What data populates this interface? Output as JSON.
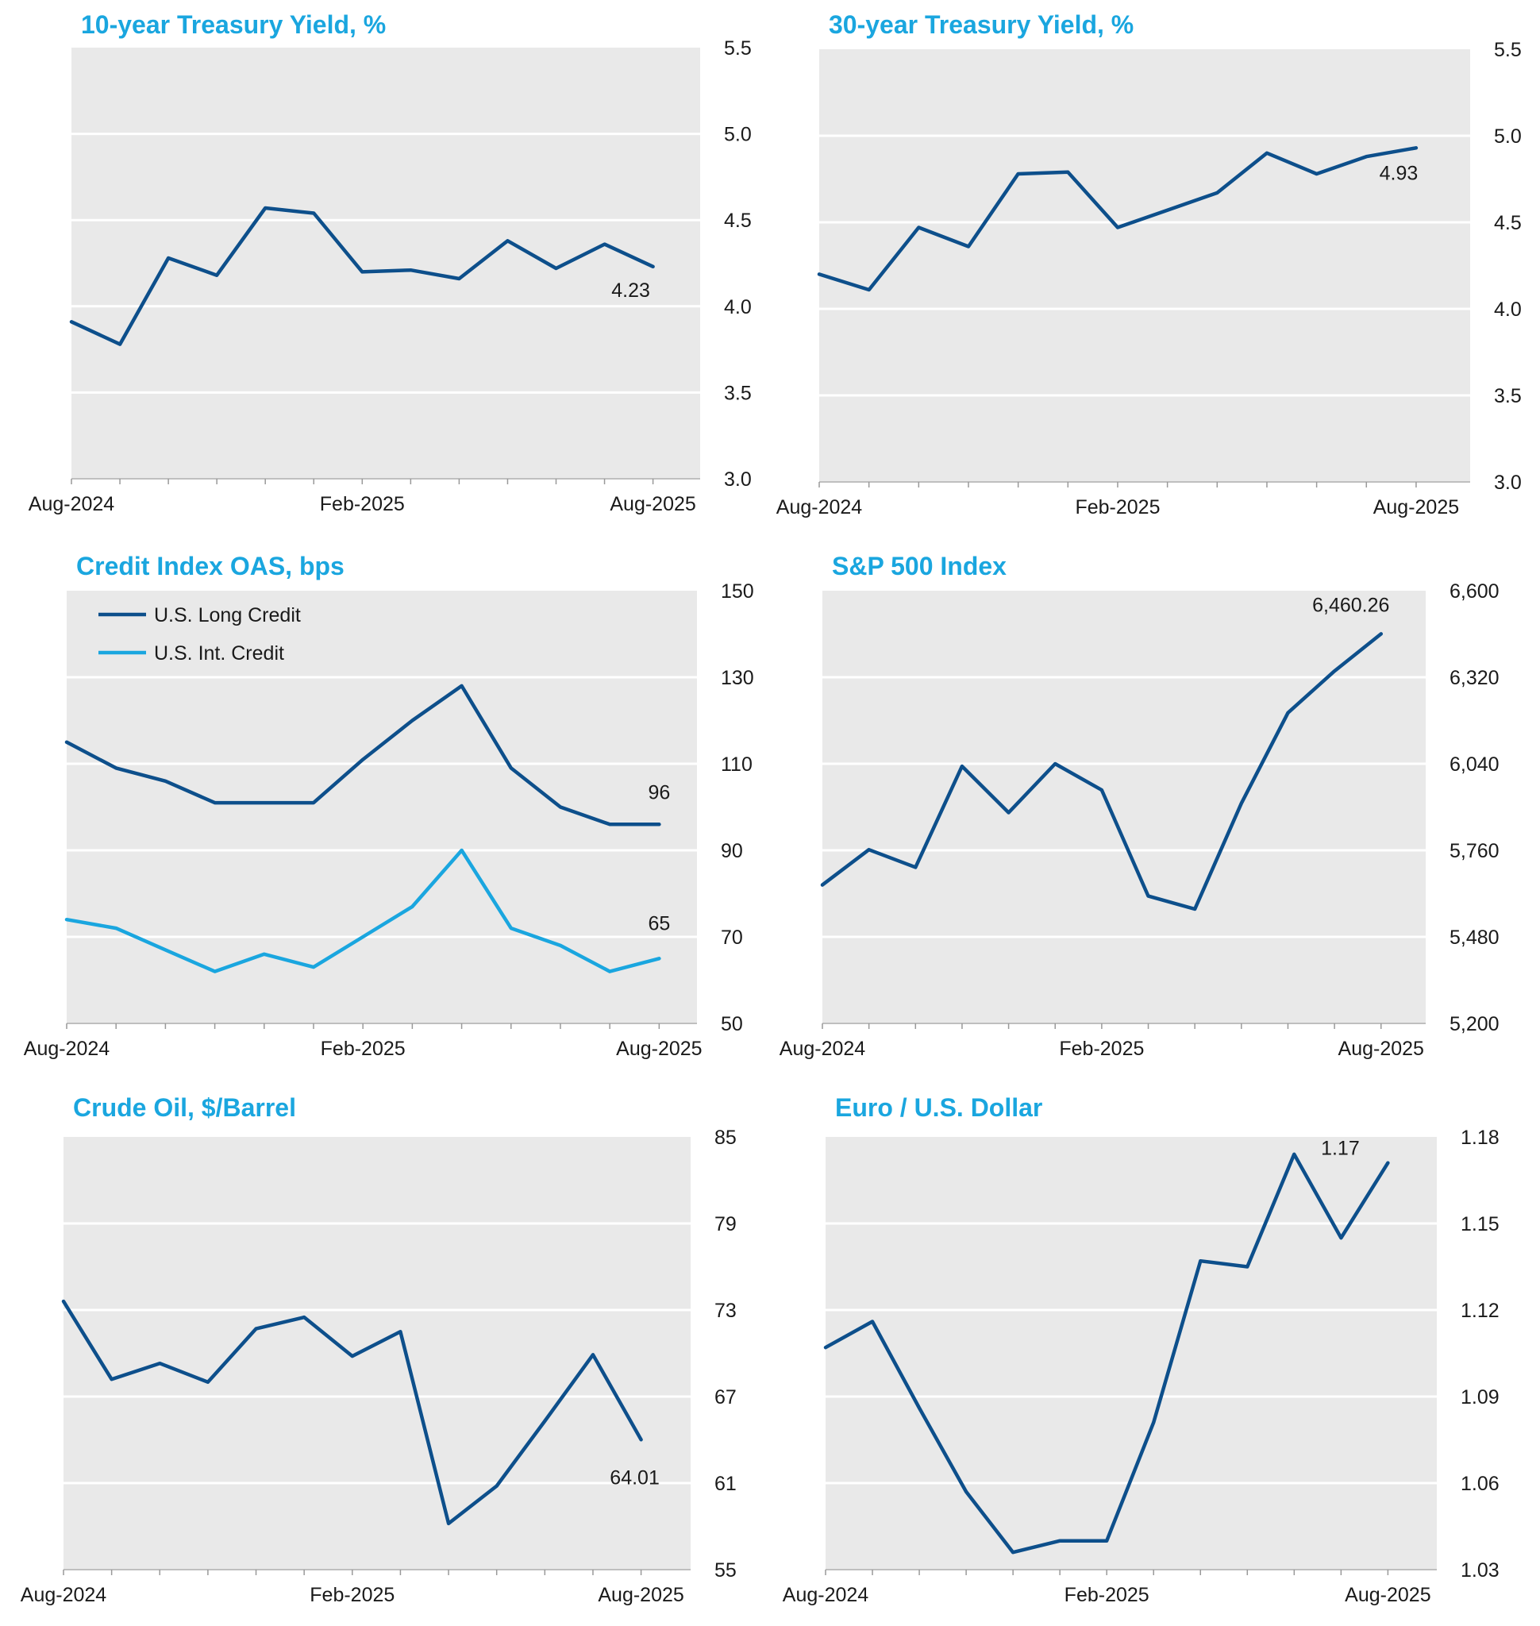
{
  "chart_data": [
    {
      "type": "line",
      "title": "10-year Treasury Yield, %",
      "ylim": [
        3.0,
        5.5
      ],
      "yticks": [
        "3.0",
        "3.5",
        "4.0",
        "4.5",
        "5.0",
        "5.5"
      ],
      "x_labels": [
        "Aug-2024",
        "Feb-2025",
        "Aug-2025"
      ],
      "x_label_months": [
        0,
        6,
        12
      ],
      "x": [
        "Aug-2024",
        "Sep-2024",
        "Oct-2024",
        "Nov-2024",
        "Dec-2024",
        "Jan-2025",
        "Feb-2025",
        "Mar-2025",
        "Apr-2025",
        "May-2025",
        "Jun-2025",
        "Jul-2025",
        "Aug-2025"
      ],
      "series": [
        {
          "color": "#0d4f8b",
          "values": [
            3.91,
            3.78,
            4.28,
            4.18,
            4.57,
            4.54,
            4.2,
            4.21,
            4.16,
            4.38,
            4.22,
            4.36,
            4.23
          ],
          "end_label": "4.23"
        }
      ],
      "grid": true,
      "y_axis_side": "right"
    },
    {
      "type": "line",
      "title": "30-year Treasury Yield, %",
      "ylim": [
        3.0,
        5.5
      ],
      "yticks": [
        "3.0",
        "3.5",
        "4.0",
        "4.5",
        "5.0",
        "5.5"
      ],
      "x_labels": [
        "Aug-2024",
        "Feb-2025",
        "Aug-2025"
      ],
      "x_label_months": [
        0,
        6,
        12
      ],
      "x": [
        "Aug-2024",
        "Sep-2024",
        "Oct-2024",
        "Nov-2024",
        "Dec-2024",
        "Jan-2025",
        "Feb-2025",
        "Mar-2025",
        "Apr-2025",
        "May-2025",
        "Jun-2025",
        "Jul-2025",
        "Aug-2025"
      ],
      "series": [
        {
          "color": "#0d4f8b",
          "values": [
            4.2,
            4.11,
            4.47,
            4.36,
            4.78,
            4.79,
            4.47,
            4.57,
            4.67,
            4.9,
            4.78,
            4.88,
            4.93
          ],
          "end_label": "4.93"
        }
      ],
      "grid": true,
      "y_axis_side": "right"
    },
    {
      "type": "line",
      "title": "Credit Index OAS, bps",
      "ylim": [
        50,
        150
      ],
      "yticks": [
        "50",
        "70",
        "90",
        "110",
        "130",
        "150"
      ],
      "x_labels": [
        "Aug-2024",
        "Feb-2025",
        "Aug-2025"
      ],
      "x_label_months": [
        0,
        6,
        12
      ],
      "x": [
        "Aug-2024",
        "Sep-2024",
        "Oct-2024",
        "Nov-2024",
        "Dec-2024",
        "Jan-2025",
        "Feb-2025",
        "Mar-2025",
        "Apr-2025",
        "May-2025",
        "Jun-2025",
        "Jul-2025",
        "Aug-2025"
      ],
      "series": [
        {
          "name": "U.S. Long Credit",
          "color": "#0d4f8b",
          "values": [
            115,
            109,
            106,
            101,
            101,
            101,
            111,
            120,
            128,
            109,
            100,
            96,
            96
          ],
          "end_label": "96"
        },
        {
          "name": "U.S. Int. Credit",
          "color": "#1aa6df",
          "values": [
            74,
            72,
            67,
            62,
            66,
            63,
            70,
            77,
            90,
            72,
            68,
            62,
            65
          ],
          "end_label": "65"
        }
      ],
      "legend": "top-left",
      "grid": true,
      "y_axis_side": "right"
    },
    {
      "type": "line",
      "title": "S&P 500 Index",
      "ylim": [
        5200,
        6600
      ],
      "yticks": [
        "5,200",
        "5,480",
        "5,760",
        "6,040",
        "6,320",
        "6,600"
      ],
      "x_labels": [
        "Aug-2024",
        "Feb-2025",
        "Aug-2025"
      ],
      "x_label_months": [
        0,
        6,
        12
      ],
      "x": [
        "Aug-2024",
        "Sep-2024",
        "Oct-2024",
        "Nov-2024",
        "Dec-2024",
        "Jan-2025",
        "Feb-2025",
        "Mar-2025",
        "Apr-2025",
        "May-2025",
        "Jun-2025",
        "Jul-2025",
        "Aug-2025"
      ],
      "series": [
        {
          "color": "#0d4f8b",
          "values": [
            5648,
            5762,
            5705,
            6032,
            5882,
            6040,
            5955,
            5612,
            5570,
            5912,
            6205,
            6340,
            6460.26
          ],
          "end_label": "6,460.26"
        }
      ],
      "grid": true,
      "y_axis_side": "right"
    },
    {
      "type": "line",
      "title": "Crude Oil, $/Barrel",
      "ylim": [
        55,
        85
      ],
      "yticks": [
        "55",
        "61",
        "67",
        "73",
        "79",
        "85"
      ],
      "x_labels": [
        "Aug-2024",
        "Feb-2025",
        "Aug-2025"
      ],
      "x_label_months": [
        0,
        6,
        12
      ],
      "x": [
        "Aug-2024",
        "Sep-2024",
        "Oct-2024",
        "Nov-2024",
        "Dec-2024",
        "Jan-2025",
        "Feb-2025",
        "Mar-2025",
        "Apr-2025",
        "May-2025",
        "Jun-2025",
        "Jul-2025",
        "Aug-2025"
      ],
      "series": [
        {
          "color": "#0d4f8b",
          "values": [
            73.6,
            68.2,
            69.3,
            68.0,
            71.7,
            72.5,
            69.8,
            71.5,
            58.2,
            60.8,
            65.3,
            69.9,
            64.01
          ],
          "end_label": "64.01"
        }
      ],
      "grid": true,
      "y_axis_side": "right"
    },
    {
      "type": "line",
      "title": "Euro / U.S. Dollar",
      "ylim": [
        1.03,
        1.18
      ],
      "yticks": [
        "1.03",
        "1.06",
        "1.09",
        "1.12",
        "1.15",
        "1.18"
      ],
      "x_labels": [
        "Aug-2024",
        "Feb-2025",
        "Aug-2025"
      ],
      "x_label_months": [
        0,
        6,
        12
      ],
      "x": [
        "Aug-2024",
        "Sep-2024",
        "Oct-2024",
        "Nov-2024",
        "Dec-2024",
        "Jan-2025",
        "Feb-2025",
        "Mar-2025",
        "Apr-2025",
        "May-2025",
        "Jun-2025",
        "Jul-2025",
        "Aug-2025"
      ],
      "series": [
        {
          "color": "#0d4f8b",
          "values": [
            1.107,
            1.116,
            1.086,
            1.057,
            1.036,
            1.04,
            1.04,
            1.081,
            1.137,
            1.135,
            1.174,
            1.145,
            1.171
          ],
          "end_label": "1.17"
        }
      ],
      "grid": true,
      "y_axis_side": "right"
    }
  ]
}
